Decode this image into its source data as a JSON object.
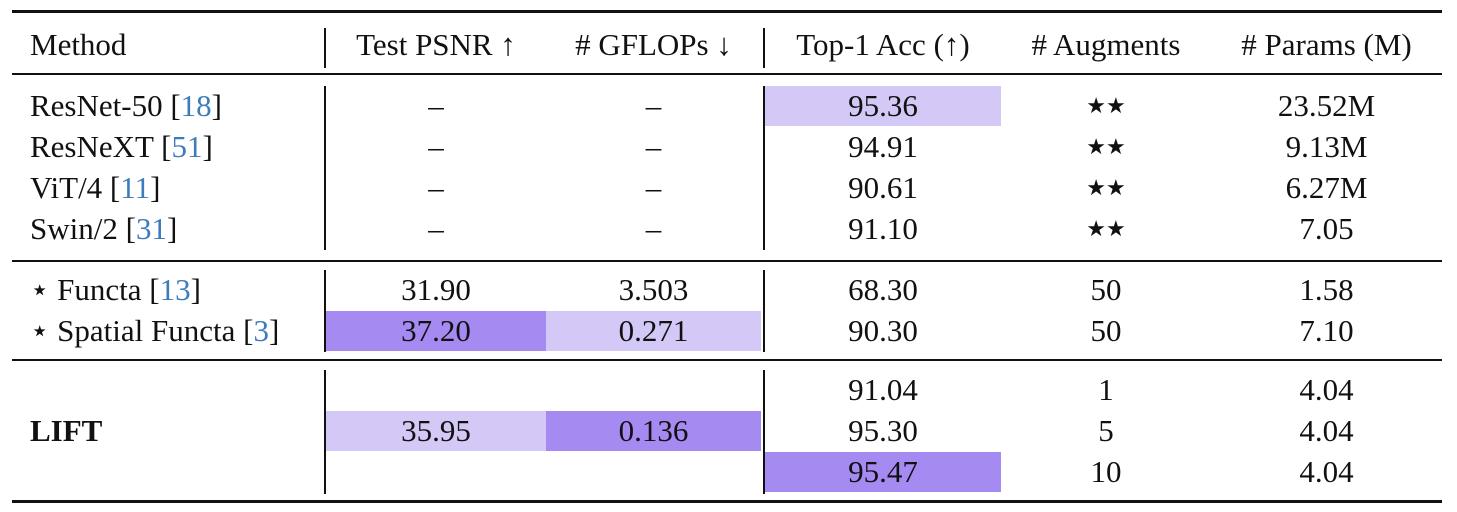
{
  "header": {
    "method": "Method",
    "psnr": "Test PSNR ↑",
    "gflops": "# GFLOPs ↓",
    "acc": "Top-1 Acc (↑)",
    "augments": "# Augments",
    "params": "# Params (M)"
  },
  "group1": [
    {
      "name": "ResNet-50 [",
      "cite": "18",
      "close": "]",
      "psnr": "–",
      "gflops": "–",
      "acc": "95.36",
      "augments": "★★",
      "params": "23.52M"
    },
    {
      "name": "ResNeXT [",
      "cite": "51",
      "close": "]",
      "psnr": "–",
      "gflops": "–",
      "acc": "94.91",
      "augments": "★★",
      "params": "9.13M"
    },
    {
      "name": "ViT/4 [",
      "cite": "11",
      "close": "]",
      "psnr": "–",
      "gflops": "–",
      "acc": "90.61",
      "augments": "★★",
      "params": "6.27M"
    },
    {
      "name": "Swin/2 [",
      "cite": "31",
      "close": "]",
      "psnr": "–",
      "gflops": "–",
      "acc": "91.10",
      "augments": "★★",
      "params": "7.05"
    }
  ],
  "group2": [
    {
      "star": "⋆",
      "name": "Functa [",
      "cite": "13",
      "close": "]",
      "psnr": "31.90",
      "gflops": "3.503",
      "acc": "68.30",
      "augments": "50",
      "params": "1.58"
    },
    {
      "star": "⋆",
      "name": "Spatial Functa [",
      "cite": "3",
      "close": "]",
      "psnr": "37.20",
      "gflops": "0.271",
      "acc": "90.30",
      "augments": "50",
      "params": "7.10"
    }
  ],
  "lift": {
    "name": "LIFT",
    "psnr": "35.95",
    "gflops": "0.136",
    "rows": [
      {
        "acc": "91.04",
        "augments": "1",
        "params": "4.04"
      },
      {
        "acc": "95.30",
        "augments": "5",
        "params": "4.04"
      },
      {
        "acc": "95.47",
        "augments": "10",
        "params": "4.04"
      }
    ]
  },
  "colors": {
    "highlight_light": "#d4c8f7",
    "highlight_dark": "#a58af2",
    "citation": "#3e7bbd"
  }
}
